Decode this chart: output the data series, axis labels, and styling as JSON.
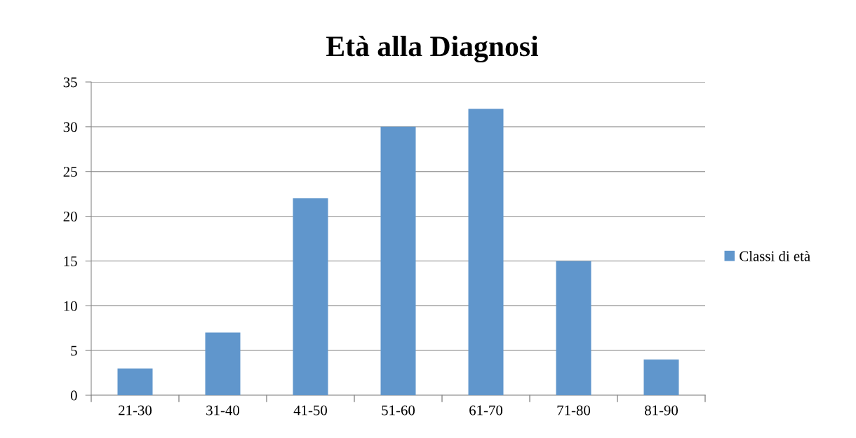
{
  "chart_data": {
    "type": "bar",
    "title": "Età alla Diagnosi",
    "categories": [
      "21-30",
      "31-40",
      "41-50",
      "51-60",
      "61-70",
      "71-80",
      "81-90"
    ],
    "series": [
      {
        "name": "Classi di età",
        "color": "#6096cc",
        "values": [
          3,
          7,
          22,
          30,
          32,
          15,
          4
        ]
      }
    ],
    "ylim": [
      0,
      35
    ],
    "yticks": [
      0,
      5,
      10,
      15,
      20,
      25,
      30,
      35
    ],
    "grid": "y",
    "legend": "right"
  }
}
